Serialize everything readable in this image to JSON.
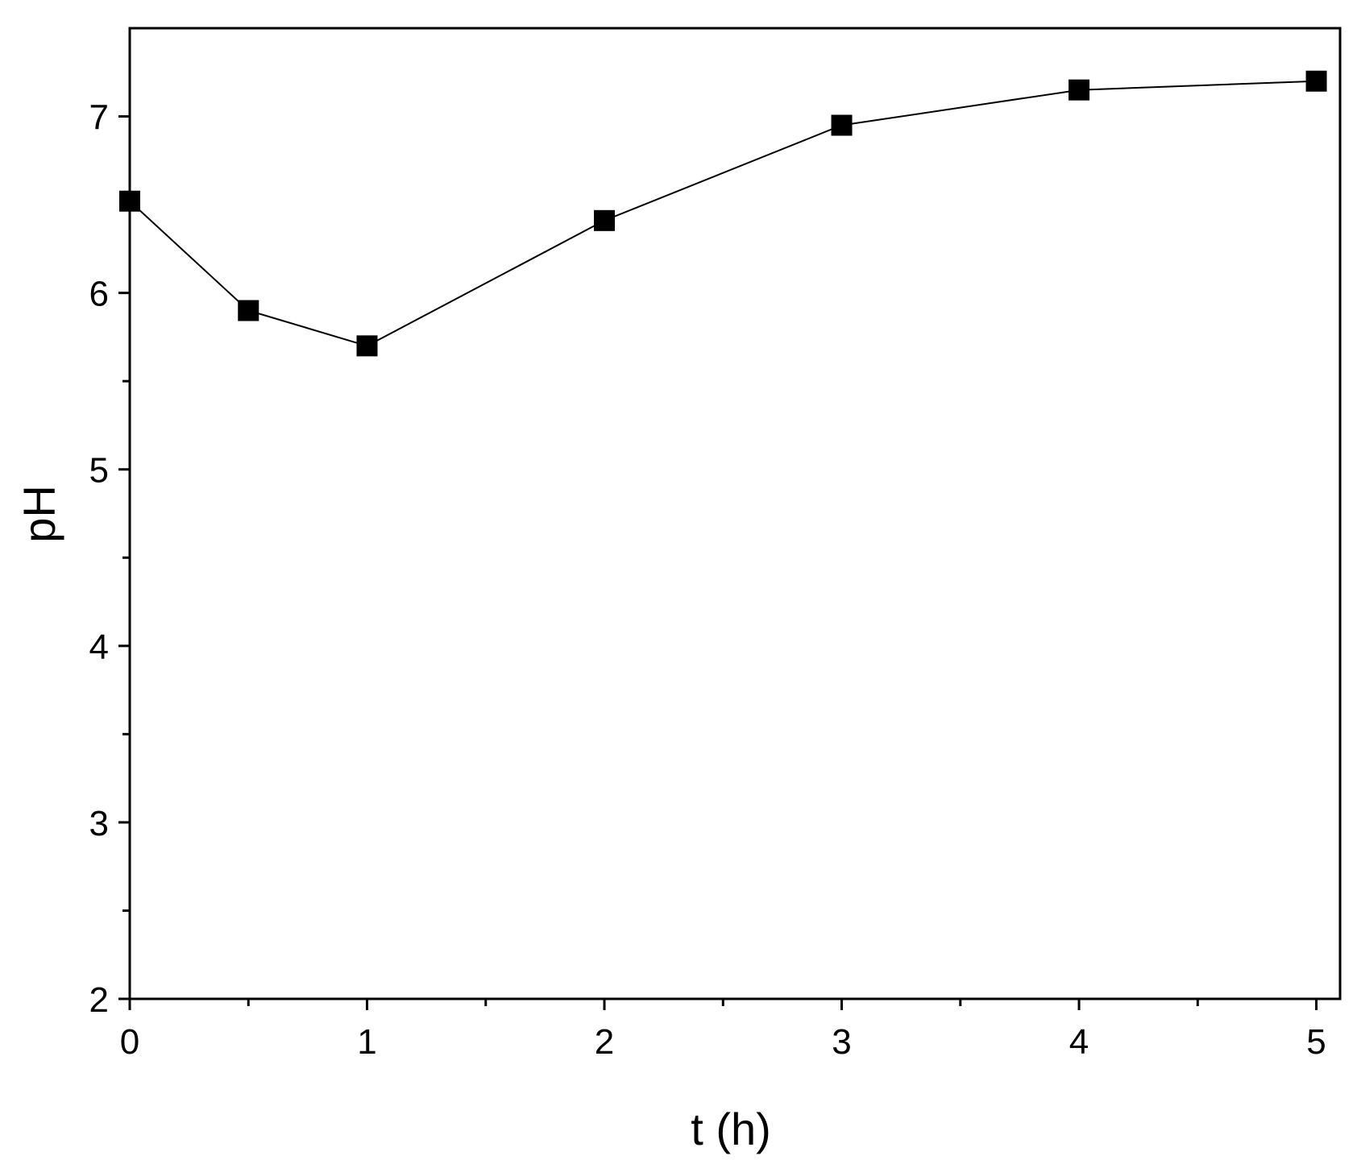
{
  "chart_data": {
    "type": "line",
    "title": "",
    "xlabel": "t (h)",
    "ylabel": "pH",
    "xlim": [
      0,
      5.1
    ],
    "ylim": [
      2,
      7.5
    ],
    "x_ticks": [
      0,
      1,
      2,
      3,
      4,
      5
    ],
    "x_minor_ticks": [
      0.5,
      1.5,
      2.5,
      3.5,
      4.5
    ],
    "y_ticks": [
      2,
      3,
      4,
      5,
      6,
      7
    ],
    "y_minor_ticks": [
      2.5,
      3.5,
      4.5,
      5.5,
      6.5
    ],
    "grid": false,
    "series": [
      {
        "marker": "square",
        "color": "#000000",
        "x": [
          0,
          0.5,
          1,
          2,
          3,
          4,
          5
        ],
        "y": [
          6.52,
          5.9,
          5.7,
          6.41,
          6.95,
          7.15,
          7.2
        ]
      }
    ]
  }
}
